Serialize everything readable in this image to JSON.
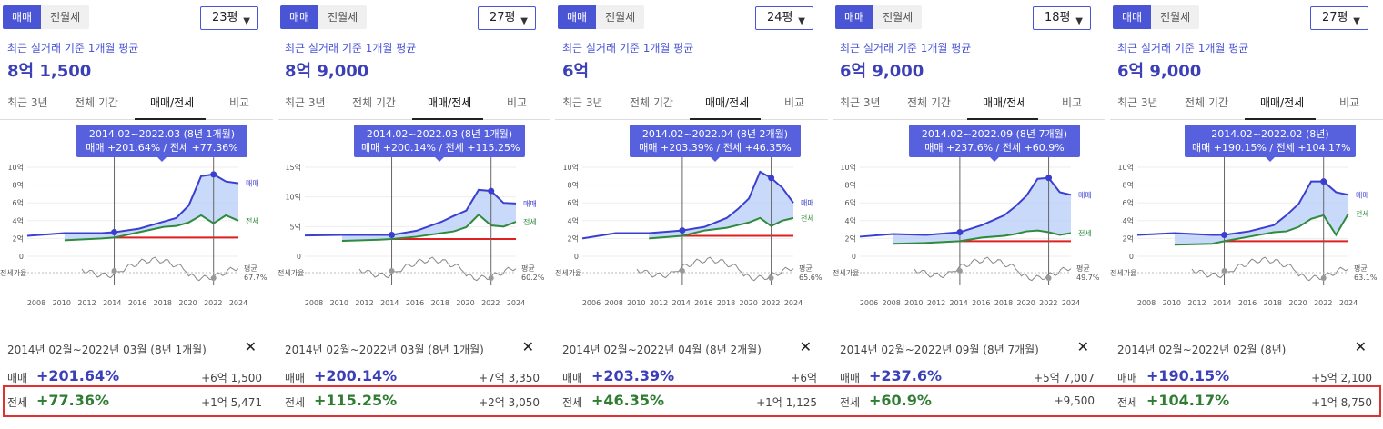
{
  "common": {
    "seg_sale": "매매",
    "seg_rent": "전월세",
    "subtitle": "최근 실거래 기준 1개월 평균",
    "tabs": [
      "최근 3년",
      "전체 기간",
      "매매/전세",
      "비교"
    ],
    "series_sale": "매매",
    "series_jeonse": "전세",
    "ratio_label": "전세가율",
    "avg_label": "평균",
    "close": "✕",
    "caret": "▼"
  },
  "panels": [
    {
      "size": "23평",
      "price": "8억 1,500",
      "tip_line1": "2014.02~2022.03 (8년 1개월)",
      "tip_line2": "매매 +201.64%  /  전세 +77.36%",
      "yticks": [
        "10억",
        "8억",
        "6억",
        "4억",
        "2억",
        "0"
      ],
      "xticks": [
        "2008",
        "2010",
        "2012",
        "2014",
        "2016",
        "2018",
        "2020",
        "2022",
        "2024"
      ],
      "ratio_avg": "67.7%",
      "range": "2014년 02월~2022년 03월 (8년 1개월)",
      "sale_pct": "+201.64%",
      "sale_amt": "+6억 1,500",
      "jeonse_pct": "+77.36%",
      "jeonse_amt": "+1억 5,471"
    },
    {
      "size": "27평",
      "price": "8억 9,000",
      "tip_line1": "2014.02~2022.03 (8년 1개월)",
      "tip_line2": "매매 +200.14%  /  전세 +115.25%",
      "yticks": [
        "15억",
        "10억",
        "5억",
        "0"
      ],
      "xticks": [
        "2008",
        "2010",
        "2012",
        "2014",
        "2016",
        "2018",
        "2020",
        "2022",
        "2024"
      ],
      "ratio_avg": "60.2%",
      "range": "2014년 02월~2022년 03월 (8년 1개월)",
      "sale_pct": "+200.14%",
      "sale_amt": "+7억 3,350",
      "jeonse_pct": "+115.25%",
      "jeonse_amt": "+2억 3,050"
    },
    {
      "size": "24평",
      "price": "6억",
      "tip_line1": "2014.02~2022.04 (8년 2개월)",
      "tip_line2": "매매 +203.39%  /  전세 +46.35%",
      "yticks": [
        "10억",
        "8억",
        "6억",
        "4억",
        "2억",
        "0"
      ],
      "xticks": [
        "2006",
        "2008",
        "2010",
        "2012",
        "2014",
        "2016",
        "2018",
        "2020",
        "2022",
        "2024"
      ],
      "ratio_avg": "65.6%",
      "range": "2014년 02월~2022년 04월 (8년 2개월)",
      "sale_pct": "+203.39%",
      "sale_amt": "+6억",
      "jeonse_pct": "+46.35%",
      "jeonse_amt": "+1억 1,125"
    },
    {
      "size": "18평",
      "price": "6억 9,000",
      "tip_line1": "2014.02~2022.09 (8년 7개월)",
      "tip_line2": "매매 +237.6%  /  전세 +60.9%",
      "yticks": [
        "10억",
        "8억",
        "6억",
        "4억",
        "2억",
        "0"
      ],
      "xticks": [
        "2006",
        "2008",
        "2010",
        "2012",
        "2014",
        "2016",
        "2018",
        "2020",
        "2022",
        "2024"
      ],
      "ratio_avg": "49.7%",
      "range": "2014년 02월~2022년 09월 (8년 7개월)",
      "sale_pct": "+237.6%",
      "sale_amt": "+5억 7,007",
      "jeonse_pct": "+60.9%",
      "jeonse_amt": "+9,500"
    },
    {
      "size": "27평",
      "price": "6억 9,000",
      "tip_line1": "2014.02~2022.02 (8년)",
      "tip_line2": "매매 +190.15%  /  전세 +104.17%",
      "yticks": [
        "10억",
        "8억",
        "6억",
        "4억",
        "2억",
        "0"
      ],
      "xticks": [
        "2008",
        "2010",
        "2012",
        "2014",
        "2016",
        "2018",
        "2020",
        "2022",
        "2024"
      ],
      "ratio_avg": "63.1%",
      "range": "2014년 02월~2022년 02월 (8년)",
      "sale_pct": "+190.15%",
      "sale_amt": "+5억 2,100",
      "jeonse_pct": "+104.17%",
      "jeonse_amt": "+1억 8,750"
    }
  ],
  "chart_data": [
    {
      "type": "line",
      "ylim": [
        0,
        10
      ],
      "x": [
        2007,
        2010,
        2013,
        2014,
        2016,
        2018,
        2019,
        2020,
        2021,
        2022,
        2023,
        2024
      ],
      "series": [
        {
          "name": "매매",
          "values": [
            2.3,
            2.6,
            2.6,
            2.7,
            3.1,
            3.9,
            4.3,
            5.7,
            9.0,
            9.2,
            8.4,
            8.2
          ]
        },
        {
          "name": "전세",
          "values": [
            null,
            1.8,
            2.0,
            2.1,
            2.7,
            3.3,
            3.4,
            3.8,
            4.6,
            3.7,
            4.6,
            4.0
          ]
        }
      ]
    },
    {
      "type": "line",
      "ylim": [
        0,
        15
      ],
      "x": [
        2007,
        2010,
        2013,
        2014,
        2016,
        2018,
        2019,
        2020,
        2021,
        2022,
        2023,
        2024
      ],
      "series": [
        {
          "name": "매매",
          "values": [
            3.5,
            3.6,
            3.6,
            3.6,
            4.3,
            5.8,
            6.8,
            7.7,
            11.2,
            11.0,
            9.0,
            8.9
          ]
        },
        {
          "name": "전세",
          "values": [
            null,
            2.6,
            2.8,
            2.9,
            3.3,
            3.9,
            4.2,
            4.9,
            7.0,
            5.2,
            5.0,
            5.8
          ]
        }
      ]
    },
    {
      "type": "line",
      "ylim": [
        0,
        10
      ],
      "x": [
        2005,
        2008,
        2011,
        2014,
        2016,
        2018,
        2019,
        2020,
        2021,
        2022,
        2023,
        2024
      ],
      "series": [
        {
          "name": "매매",
          "values": [
            2.0,
            2.6,
            2.6,
            2.9,
            3.3,
            4.3,
            5.3,
            6.5,
            9.5,
            8.8,
            7.7,
            6.0
          ]
        },
        {
          "name": "전세",
          "values": [
            null,
            null,
            2.0,
            2.3,
            2.9,
            3.2,
            3.5,
            3.8,
            4.3,
            3.4,
            4.0,
            4.3
          ]
        }
      ]
    },
    {
      "type": "line",
      "ylim": [
        0,
        10
      ],
      "x": [
        2005,
        2008,
        2011,
        2014,
        2016,
        2018,
        2019,
        2020,
        2021,
        2022,
        2023,
        2024
      ],
      "series": [
        {
          "name": "매매",
          "values": [
            2.2,
            2.5,
            2.4,
            2.7,
            3.5,
            4.6,
            5.6,
            6.8,
            8.7,
            8.8,
            7.2,
            6.9
          ]
        },
        {
          "name": "전세",
          "values": [
            null,
            1.4,
            1.5,
            1.7,
            2.1,
            2.3,
            2.5,
            2.8,
            2.9,
            2.7,
            2.4,
            2.6
          ]
        }
      ]
    },
    {
      "type": "line",
      "ylim": [
        0,
        10
      ],
      "x": [
        2007,
        2010,
        2013,
        2014,
        2016,
        2018,
        2019,
        2020,
        2021,
        2022,
        2023,
        2024
      ],
      "series": [
        {
          "name": "매매",
          "values": [
            2.4,
            2.6,
            2.4,
            2.4,
            2.8,
            3.5,
            4.6,
            5.9,
            8.4,
            8.4,
            7.2,
            6.9
          ]
        },
        {
          "name": "전세",
          "values": [
            null,
            1.3,
            1.4,
            1.7,
            2.2,
            2.7,
            2.8,
            3.3,
            4.2,
            4.6,
            2.4,
            4.8
          ]
        }
      ]
    }
  ]
}
